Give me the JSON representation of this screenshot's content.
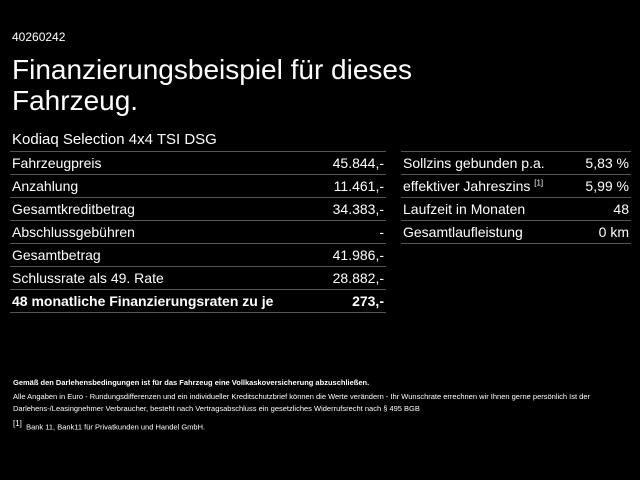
{
  "header": {
    "id": "40260242",
    "title": "Finanzierungsbeispiel für dieses Fahrzeug.",
    "subtitle": "Kodiaq Selection 4x4 TSI DSG"
  },
  "left_table": {
    "rows": [
      [
        "Fahrzeugpreis",
        "45.844,-"
      ],
      [
        "Anzahlung",
        "11.461,-"
      ],
      [
        "Gesamtkreditbetrag",
        "34.383,-"
      ],
      [
        "Abschlussgebühren",
        "-"
      ],
      [
        "Gesamtbetrag",
        "41.986,-"
      ],
      [
        "Schlussrate als 49. Rate",
        "28.882,-"
      ],
      [
        "48 monatliche Finanzierungsraten zu je",
        "273,-"
      ]
    ]
  },
  "right_table": {
    "rows": [
      [
        "Sollzins gebunden p.a.",
        "5,83 %"
      ],
      [
        "effektiver Jahreszins",
        "5,99 %"
      ],
      [
        "Laufzeit in Monaten",
        "48"
      ],
      [
        "Gesamtlaufleistung",
        "0 km"
      ]
    ],
    "footnote_marker": "[1]"
  },
  "footer": {
    "notice": "Gemäß den Darlehensbedingungen ist für das Fahrzeug eine Vollkaskoversicherung abzuschließen.",
    "disclaimer": "Alle Angaben in Euro - Rundungsdifferenzen und ein individueller Kreditschutzbrief können die Werte verändern - Ihr Wunschrate errechnen wir Ihnen gerne persönlich Ist der Darlehens-/Leasingnehmer Verbraucher, besteht nach Vertragsabschluss ein gesetzliches Widerrufsrecht nach § 495 BGB",
    "footnote_marker": "[1]",
    "footnote": "Bank 11, Bank11 für Privatkunden und Handel GmbH."
  }
}
